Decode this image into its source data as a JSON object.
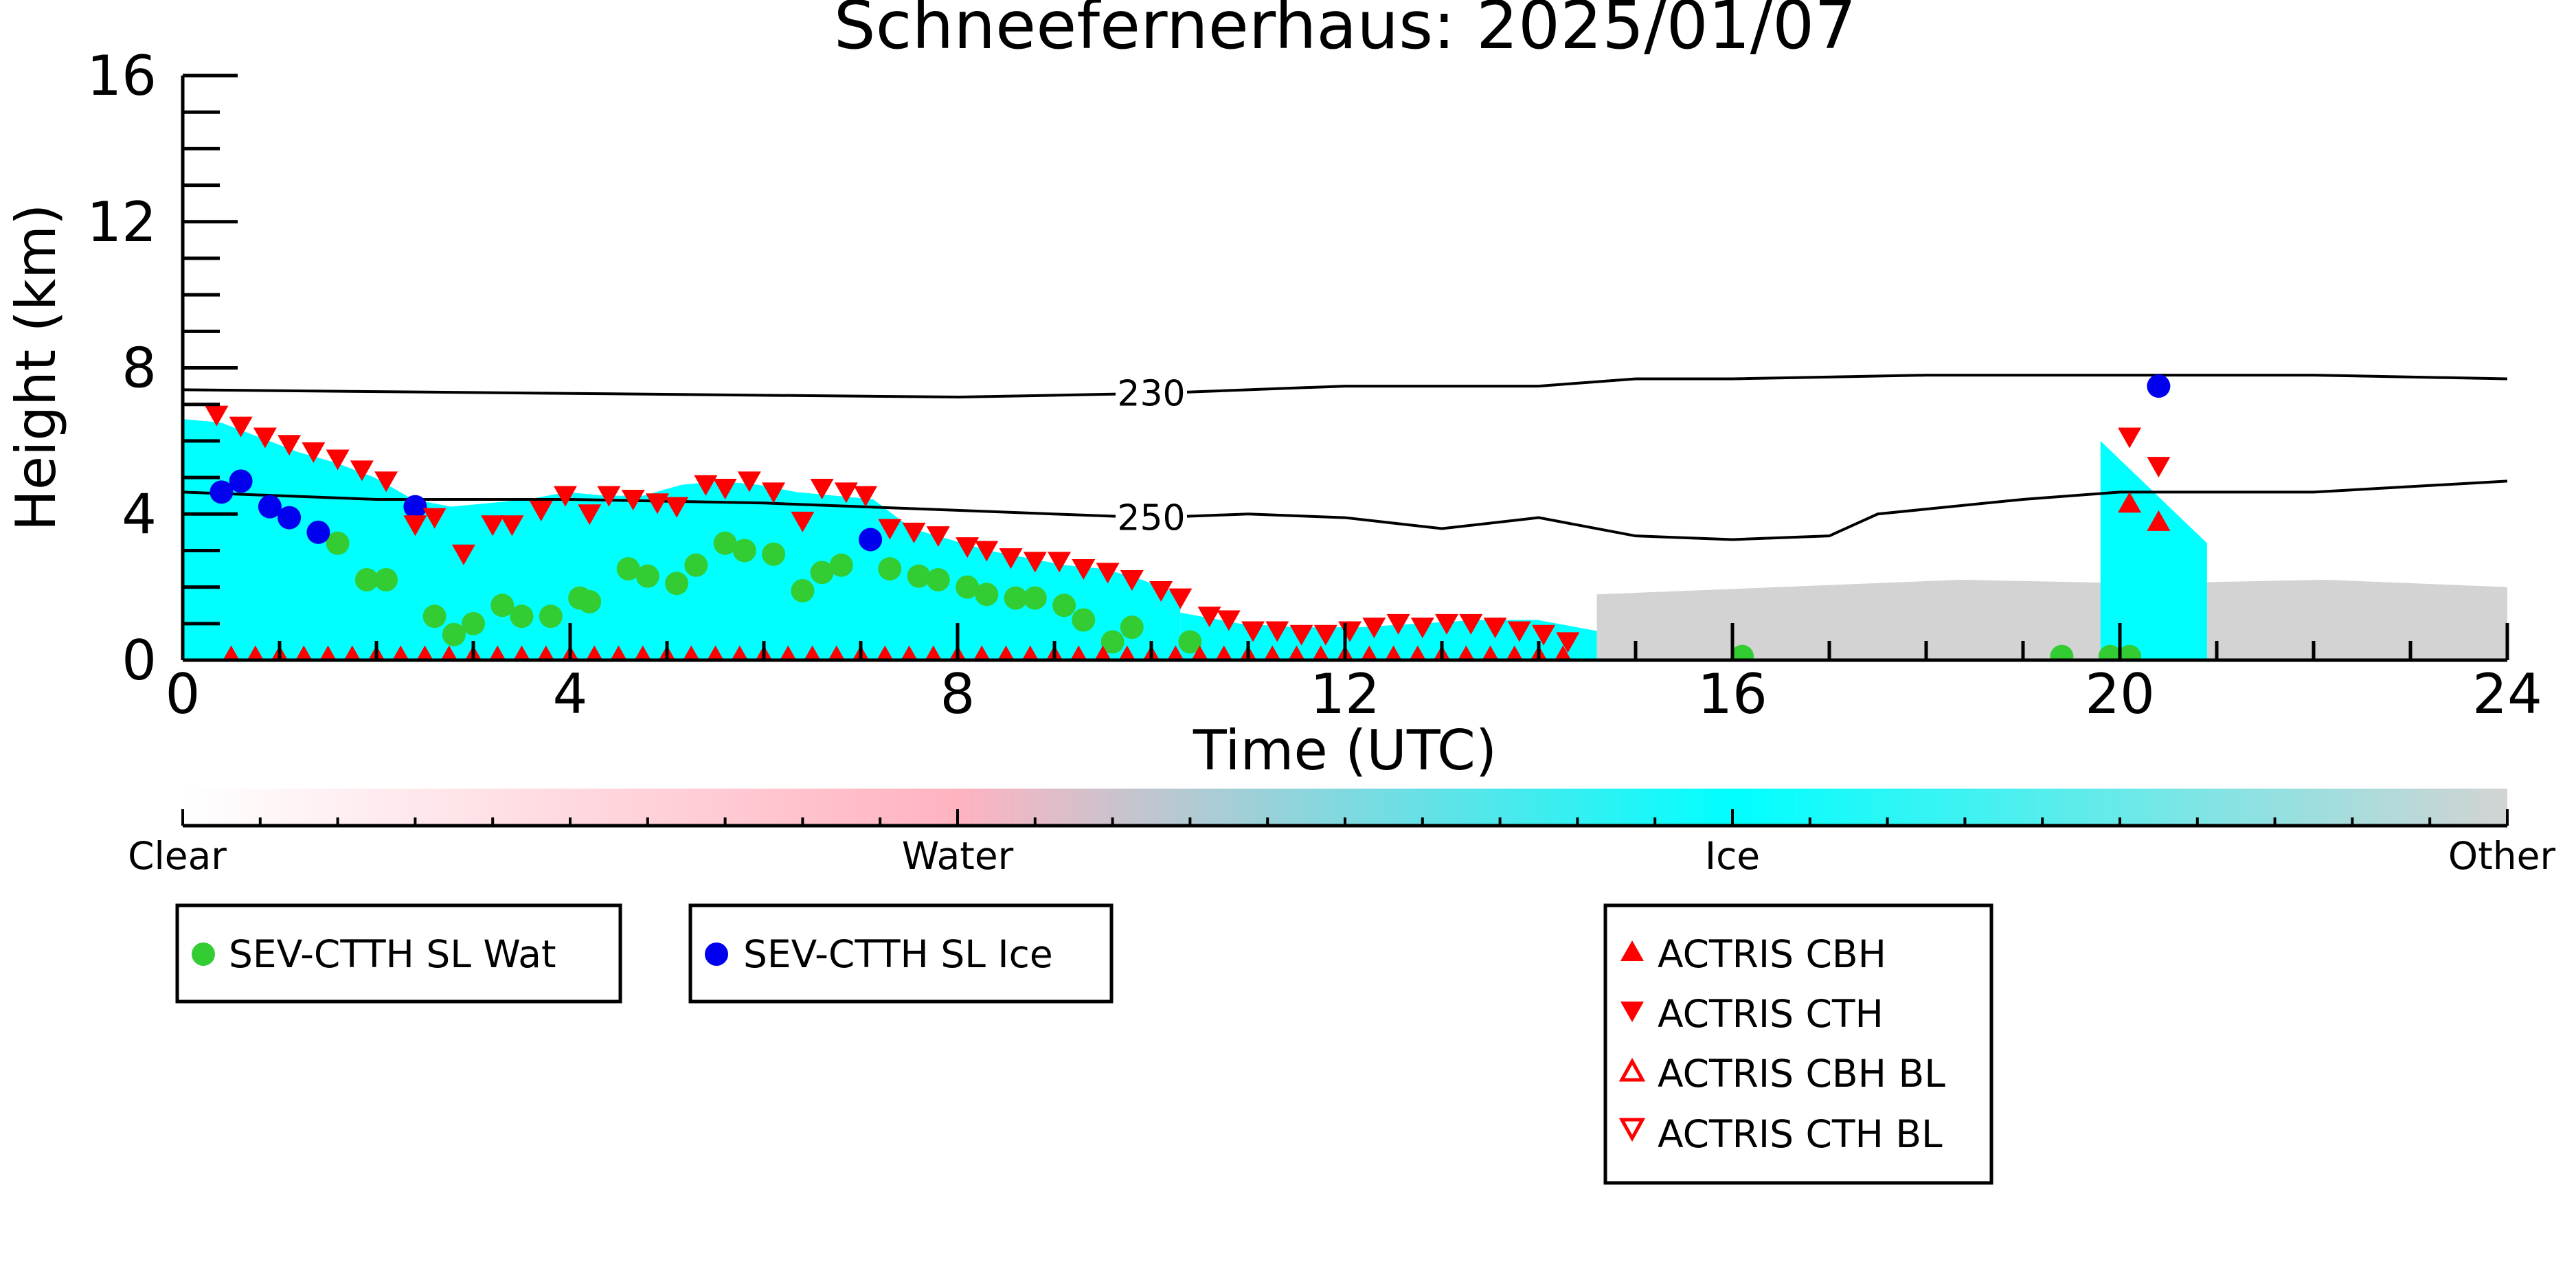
{
  "chart_data": {
    "type": "scatter",
    "title": "Schneefernerhaus: 2025/01/07",
    "xlabel": "Time (UTC)",
    "ylabel": "Height (km)",
    "xlim": [
      0,
      24
    ],
    "ylim": [
      0,
      16
    ],
    "xticks": [
      "0",
      "4",
      "8",
      "12",
      "16",
      "20",
      "24"
    ],
    "yticks": [
      "0",
      "4",
      "8",
      "12",
      "16"
    ],
    "grid": false,
    "colorbar": {
      "labels": [
        "Clear",
        "Water",
        "Ice",
        "Other"
      ],
      "colors": [
        "#ffffff",
        "#ffb3c0",
        "#00ffff",
        "#d3d3d3"
      ]
    },
    "cloud_phase_background": [
      {
        "phase": "Ice",
        "x": [
          0,
          10.3
        ],
        "top_km": [
          6.6,
          6.5,
          6.1,
          5.7,
          5.4,
          5.0,
          4.4,
          4.2,
          4.3,
          4.4,
          4.6,
          4.5,
          4.5,
          4.8,
          4.9,
          4.8,
          4.6,
          4.5,
          4.4,
          3.6,
          3.3,
          3.0,
          2.8,
          2.6,
          2.5,
          2.2,
          1.8
        ]
      },
      {
        "phase": "Ice",
        "x": [
          10.3,
          14.6
        ],
        "top_km": [
          1.3,
          1.0,
          0.9,
          0.9,
          1.0,
          1.1,
          1.1,
          0.8
        ]
      },
      {
        "phase": "Other",
        "x": [
          14.6,
          24
        ],
        "top_km": [
          1.8,
          2.0,
          2.2,
          2.1,
          2.2,
          2.0
        ]
      },
      {
        "phase": "Ice",
        "x": [
          19.8,
          20.9
        ],
        "top_km": [
          6.0,
          3.2
        ]
      }
    ],
    "contours": [
      {
        "label": "230",
        "x": [
          0,
          4,
          8,
          10,
          12,
          14,
          15,
          16,
          18,
          20,
          22,
          24
        ],
        "y": [
          7.4,
          7.3,
          7.2,
          7.3,
          7.5,
          7.5,
          7.7,
          7.7,
          7.8,
          7.8,
          7.8,
          7.7
        ]
      },
      {
        "label": "250",
        "x": [
          0,
          2,
          4,
          6,
          8,
          10,
          11,
          12,
          13,
          14,
          15,
          16,
          17,
          17.5,
          19,
          20,
          22,
          24
        ],
        "y": [
          4.6,
          4.4,
          4.4,
          4.3,
          4.1,
          3.9,
          4.0,
          3.9,
          3.6,
          3.9,
          3.4,
          3.3,
          3.4,
          4.0,
          4.4,
          4.6,
          4.6,
          4.9
        ]
      }
    ],
    "series": [
      {
        "name": "SEV-CTTH SL Wat",
        "marker": "circle",
        "color": "#33cc33",
        "x": [
          1.6,
          1.9,
          2.1,
          2.6,
          2.8,
          3.0,
          3.3,
          3.5,
          3.8,
          4.1,
          4.2,
          4.6,
          4.8,
          5.1,
          5.3,
          5.6,
          5.8,
          6.1,
          6.4,
          6.6,
          6.8,
          7.3,
          7.6,
          7.8,
          8.1,
          8.3,
          8.6,
          8.8,
          9.1,
          9.3,
          9.6,
          9.8,
          10.4,
          16.1,
          19.4,
          19.9,
          20.1
        ],
        "y": [
          3.2,
          2.2,
          2.2,
          1.2,
          0.7,
          1.0,
          1.5,
          1.2,
          1.2,
          1.7,
          1.6,
          2.5,
          2.3,
          2.1,
          2.6,
          3.2,
          3.0,
          2.9,
          1.9,
          2.4,
          2.6,
          2.5,
          2.3,
          2.2,
          2.0,
          1.8,
          1.7,
          1.7,
          1.5,
          1.1,
          0.5,
          0.9,
          0.5,
          0.1,
          0.1,
          0.1,
          0.1
        ]
      },
      {
        "name": "SEV-CTTH SL Ice",
        "marker": "circle",
        "color": "#0000ee",
        "x": [
          0.4,
          0.6,
          0.9,
          1.1,
          1.4,
          2.4,
          7.1,
          20.4
        ],
        "y": [
          4.6,
          4.9,
          4.2,
          3.9,
          3.5,
          4.2,
          3.3,
          7.5
        ]
      },
      {
        "name": "ACTRIS CBH",
        "marker": "triangle-up",
        "color": "#ff0000",
        "x": [
          0.5,
          0.75,
          1.0,
          1.25,
          1.5,
          1.75,
          2.0,
          2.25,
          2.5,
          2.75,
          3.0,
          3.25,
          3.5,
          3.75,
          4.0,
          4.25,
          4.5,
          4.75,
          5.0,
          5.25,
          5.5,
          5.75,
          6.0,
          6.25,
          6.5,
          6.75,
          7.0,
          7.25,
          7.5,
          7.75,
          8.0,
          8.25,
          8.5,
          8.75,
          9.0,
          9.25,
          9.5,
          9.75,
          10.0,
          10.25,
          10.5,
          10.75,
          11.0,
          11.25,
          11.5,
          11.75,
          12.0,
          12.25,
          12.5,
          12.75,
          13.0,
          13.25,
          13.5,
          13.75,
          14.0,
          14.25,
          20.1,
          20.4
        ],
        "y": [
          0.1,
          0.1,
          0.1,
          0.1,
          0.1,
          0.1,
          0.1,
          0.1,
          0.1,
          0.1,
          0.1,
          0.1,
          0.1,
          0.1,
          0.1,
          0.1,
          0.1,
          0.1,
          0.1,
          0.1,
          0.1,
          0.1,
          0.1,
          0.1,
          0.1,
          0.1,
          0.1,
          0.1,
          0.1,
          0.1,
          0.1,
          0.1,
          0.1,
          0.1,
          0.1,
          0.1,
          0.1,
          0.1,
          0.1,
          0.1,
          0.1,
          0.1,
          0.1,
          0.1,
          0.1,
          0.1,
          0.1,
          0.1,
          0.1,
          0.1,
          0.1,
          0.1,
          0.1,
          0.1,
          0.1,
          0.1,
          4.3,
          3.8
        ]
      },
      {
        "name": "ACTRIS CTH",
        "marker": "triangle-down",
        "color": "#ff0000",
        "x": [
          0.35,
          0.6,
          0.85,
          1.1,
          1.35,
          1.6,
          1.85,
          2.1,
          2.4,
          2.6,
          2.9,
          3.2,
          3.4,
          3.7,
          3.95,
          4.2,
          4.4,
          4.65,
          4.9,
          5.1,
          5.4,
          5.6,
          5.85,
          6.1,
          6.4,
          6.6,
          6.85,
          7.05,
          7.3,
          7.55,
          7.8,
          8.1,
          8.3,
          8.55,
          8.8,
          9.05,
          9.3,
          9.55,
          9.8,
          10.1,
          10.3,
          10.6,
          10.8,
          11.05,
          11.3,
          11.55,
          11.8,
          12.05,
          12.3,
          12.55,
          12.8,
          13.05,
          13.3,
          13.55,
          13.8,
          14.05,
          14.3,
          20.1,
          20.4
        ],
        "y": [
          6.7,
          6.4,
          6.1,
          5.9,
          5.7,
          5.5,
          5.2,
          4.9,
          3.7,
          3.9,
          2.9,
          3.7,
          3.7,
          4.1,
          4.5,
          4.0,
          4.5,
          4.4,
          4.3,
          4.2,
          4.8,
          4.7,
          4.9,
          4.6,
          3.8,
          4.7,
          4.6,
          4.5,
          3.6,
          3.5,
          3.4,
          3.1,
          3.0,
          2.8,
          2.7,
          2.7,
          2.5,
          2.4,
          2.2,
          1.9,
          1.7,
          1.2,
          1.1,
          0.8,
          0.8,
          0.7,
          0.7,
          0.8,
          0.9,
          1.0,
          0.9,
          1.0,
          1.0,
          0.9,
          0.8,
          0.7,
          0.5,
          6.1,
          5.3
        ]
      },
      {
        "name": "ACTRIS CBH BL",
        "marker": "triangle-up-open",
        "color": "#ff0000",
        "x": [],
        "y": []
      },
      {
        "name": "ACTRIS CTH BL",
        "marker": "triangle-down-open",
        "color": "#ff0000",
        "x": [],
        "y": []
      }
    ]
  }
}
